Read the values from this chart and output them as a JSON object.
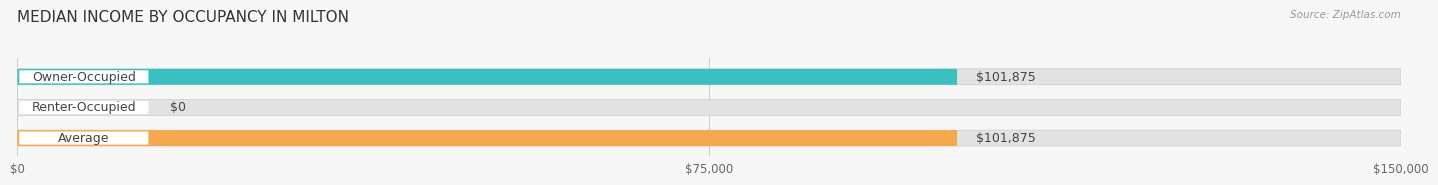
{
  "title": "MEDIAN INCOME BY OCCUPANCY IN MILTON",
  "source": "Source: ZipAtlas.com",
  "categories": [
    "Owner-Occupied",
    "Renter-Occupied",
    "Average"
  ],
  "values": [
    101875,
    0,
    101875
  ],
  "bar_colors": [
    "#3bbfbf",
    "#c4a8d4",
    "#f5a84e"
  ],
  "bar_bg_color": "#e2e2e2",
  "xlim": [
    0,
    150000
  ],
  "xticks": [
    0,
    75000,
    150000
  ],
  "xtick_labels": [
    "$0",
    "$75,000",
    "$150,000"
  ],
  "value_labels": [
    "$101,875",
    "$0",
    "$101,875"
  ],
  "bar_height": 0.52,
  "title_fontsize": 11,
  "label_fontsize": 9,
  "tick_fontsize": 8.5,
  "fig_bg": "#f7f7f7"
}
